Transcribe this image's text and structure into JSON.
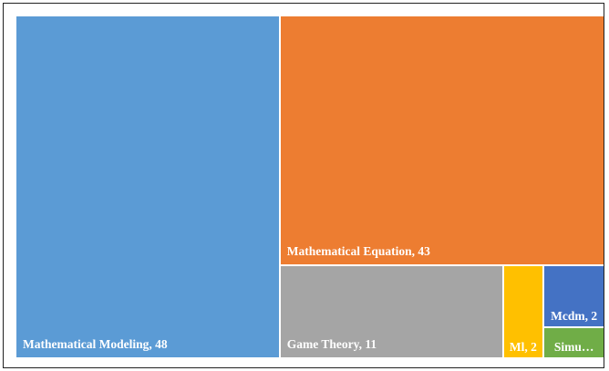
{
  "chart_data": {
    "type": "treemap",
    "values": [
      48,
      43,
      11,
      2,
      2,
      1
    ],
    "value_labels": [
      "Mathematical Modeling, 48",
      "Mathematical Equation, 43",
      "Game Theory, 11",
      "Ml, 2",
      "Mcdm, 2",
      "Simu…"
    ],
    "colors": [
      "#5b9bd5",
      "#ed7d31",
      "#a5a5a5",
      "#ffc000",
      "#4472c4",
      "#70ad47"
    ]
  }
}
